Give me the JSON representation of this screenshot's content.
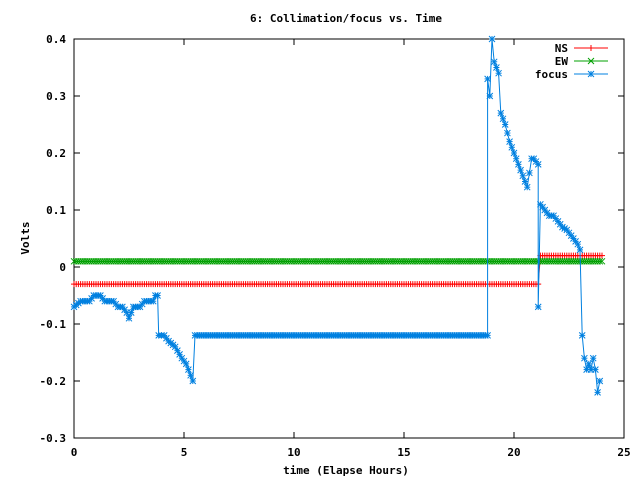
{
  "chart_data": {
    "type": "line",
    "title": "6: Collimation/focus vs. Time",
    "xlabel": "time (Elapse Hours)",
    "ylabel": "Volts",
    "xlim": [
      0,
      25
    ],
    "ylim": [
      -0.3,
      0.4
    ],
    "x_ticks": [
      0,
      5,
      10,
      15,
      20,
      25
    ],
    "x_tick_labels": [
      "0",
      "5",
      "10",
      "15",
      "20",
      "25"
    ],
    "y_ticks": [
      -0.3,
      -0.2,
      -0.1,
      0,
      0.1,
      0.2,
      0.3,
      0.4
    ],
    "y_tick_labels": [
      "-0.3",
      "-0.2",
      "-0.1",
      "0",
      "0.1",
      "0.2",
      "0.3",
      "0.4"
    ],
    "grid": false,
    "legend_position": "top-right",
    "series": [
      {
        "name": "NS",
        "color": "#ff0000",
        "marker": "plus",
        "marker_step": 0.1,
        "points": [
          [
            0,
            -0.03
          ],
          [
            21.1,
            -0.03
          ],
          [
            21.2,
            0.02
          ],
          [
            24.0,
            0.02
          ]
        ]
      },
      {
        "name": "EW",
        "color": "#00a000",
        "marker": "cross",
        "marker_step": 0.1,
        "points": [
          [
            0,
            0.01
          ],
          [
            24.0,
            0.01
          ]
        ]
      },
      {
        "name": "focus",
        "color": "#0080e0",
        "marker": "star",
        "marker_step": 0.1,
        "points": [
          [
            0,
            -0.07
          ],
          [
            0.3,
            -0.06
          ],
          [
            0.7,
            -0.06
          ],
          [
            0.9,
            -0.05
          ],
          [
            1.2,
            -0.05
          ],
          [
            1.4,
            -0.06
          ],
          [
            1.8,
            -0.06
          ],
          [
            2.0,
            -0.07
          ],
          [
            2.2,
            -0.07
          ],
          [
            2.4,
            -0.08
          ],
          [
            2.5,
            -0.09
          ],
          [
            2.6,
            -0.08
          ],
          [
            2.7,
            -0.07
          ],
          [
            3.0,
            -0.07
          ],
          [
            3.2,
            -0.06
          ],
          [
            3.6,
            -0.06
          ],
          [
            3.7,
            -0.05
          ],
          [
            3.8,
            -0.05
          ],
          [
            3.85,
            -0.12
          ],
          [
            4.1,
            -0.12
          ],
          [
            4.3,
            -0.13
          ],
          [
            4.6,
            -0.14
          ],
          [
            4.9,
            -0.16
          ],
          [
            5.1,
            -0.17
          ],
          [
            5.3,
            -0.19
          ],
          [
            5.4,
            -0.2
          ],
          [
            5.5,
            -0.12
          ],
          [
            18.8,
            -0.12
          ],
          [
            18.8,
            0.33
          ],
          [
            18.9,
            0.3
          ],
          [
            19.0,
            0.4
          ],
          [
            19.1,
            0.36
          ],
          [
            19.2,
            0.35
          ],
          [
            19.3,
            0.34
          ],
          [
            19.4,
            0.27
          ],
          [
            19.6,
            0.25
          ],
          [
            19.8,
            0.22
          ],
          [
            20.0,
            0.2
          ],
          [
            20.2,
            0.18
          ],
          [
            20.4,
            0.16
          ],
          [
            20.6,
            0.14
          ],
          [
            20.8,
            0.19
          ],
          [
            20.9,
            0.19
          ],
          [
            21.1,
            0.18
          ],
          [
            21.1,
            -0.07
          ],
          [
            21.2,
            0.11
          ],
          [
            21.4,
            0.1
          ],
          [
            21.6,
            0.09
          ],
          [
            21.8,
            0.09
          ],
          [
            22.0,
            0.08
          ],
          [
            22.2,
            0.07
          ],
          [
            22.4,
            0.065
          ],
          [
            22.6,
            0.055
          ],
          [
            22.8,
            0.045
          ],
          [
            22.9,
            0.04
          ],
          [
            23.0,
            0.03
          ],
          [
            23.1,
            -0.12
          ],
          [
            23.2,
            -0.16
          ],
          [
            23.3,
            -0.18
          ],
          [
            23.4,
            -0.17
          ],
          [
            23.5,
            -0.18
          ],
          [
            23.6,
            -0.16
          ],
          [
            23.7,
            -0.18
          ],
          [
            23.8,
            -0.22
          ],
          [
            23.9,
            -0.2
          ]
        ]
      }
    ]
  }
}
